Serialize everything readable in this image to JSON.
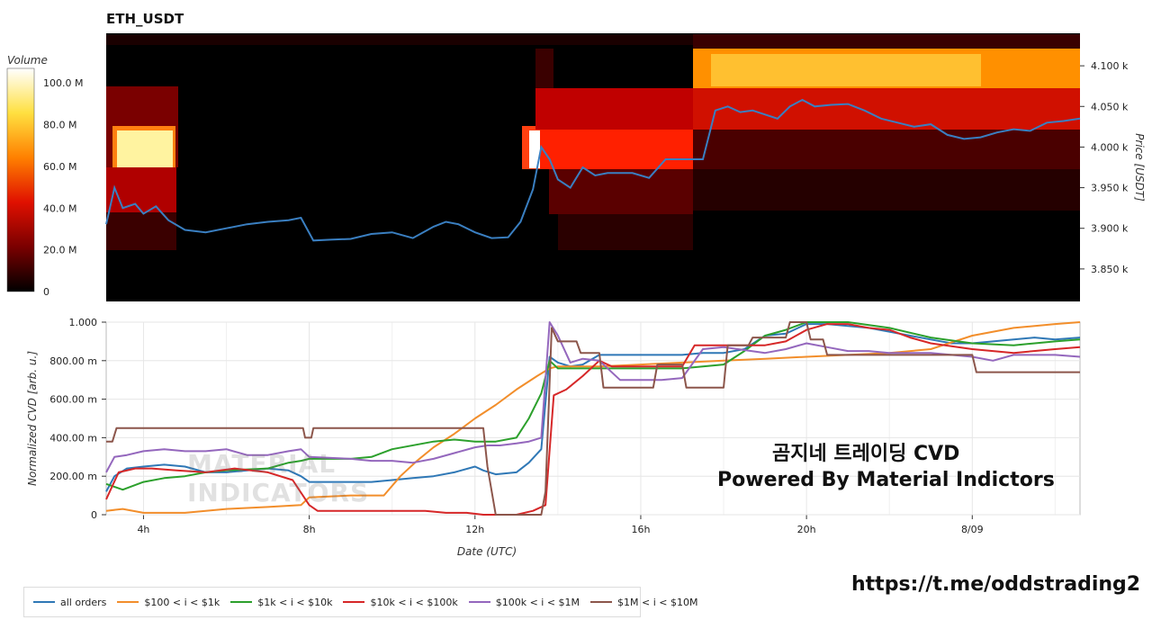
{
  "chart_data": [
    {
      "type": "heatmap",
      "title": "ETH_USDT",
      "colorbar": {
        "label": "Volume",
        "ticks": [
          "100.0 M",
          "80.0 M",
          "60.0 M",
          "40.0 M",
          "20.0 M",
          "0"
        ],
        "tick_values": [
          100,
          80,
          60,
          40,
          20,
          0
        ],
        "range": [
          0,
          107
        ],
        "colors": [
          "#000000",
          "#7a0000",
          "#e01000",
          "#ff8000",
          "#ffe040",
          "#ffffff"
        ]
      },
      "ylabel": "Price [USDT]",
      "y_ticks": [
        "4.100 k",
        "4.050 k",
        "4.000 k",
        "3.950 k",
        "3.900 k",
        "3.850 k"
      ],
      "y_tick_values": [
        4100,
        4050,
        4000,
        3950,
        3900,
        3850
      ],
      "ylim": [
        3810,
        4140
      ],
      "xlim": [
        3.1,
        26.6
      ],
      "price_line": {
        "color": "#3a7fc1",
        "x": [
          3.1,
          3.3,
          3.5,
          3.8,
          4.0,
          4.3,
          4.6,
          5.0,
          5.5,
          6.0,
          6.5,
          7.0,
          7.5,
          7.8,
          8.1,
          8.5,
          9.0,
          9.5,
          10.0,
          10.5,
          11.0,
          11.3,
          11.6,
          12.0,
          12.4,
          12.8,
          13.1,
          13.4,
          13.6,
          13.8,
          14.0,
          14.3,
          14.6,
          14.9,
          15.2,
          15.5,
          15.8,
          16.2,
          16.6,
          17.0,
          17.3,
          17.5,
          17.8,
          18.1,
          18.4,
          18.7,
          19.0,
          19.3,
          19.6,
          19.9,
          20.2,
          20.6,
          21.0,
          21.4,
          21.8,
          22.2,
          22.6,
          23.0,
          23.4,
          23.8,
          24.2,
          24.6,
          25.0,
          25.4,
          25.8,
          26.2,
          26.6
        ],
        "y": [
          3905,
          3950,
          3925,
          3930,
          3918,
          3927,
          3910,
          3898,
          3895,
          3900,
          3905,
          3908,
          3910,
          3913,
          3885,
          3886,
          3887,
          3893,
          3895,
          3888,
          3902,
          3908,
          3905,
          3895,
          3888,
          3889,
          3908,
          3948,
          4000,
          3985,
          3960,
          3950,
          3975,
          3965,
          3968,
          3968,
          3968,
          3962,
          3985,
          3985,
          3985,
          3985,
          4045,
          4050,
          4043,
          4045,
          4040,
          4035,
          4050,
          4058,
          4050,
          4052,
          4053,
          4045,
          4035,
          4030,
          4025,
          4028,
          4015,
          4010,
          4012,
          4018,
          4022,
          4020,
          4030,
          4032,
          4035
        ]
      }
    },
    {
      "type": "line",
      "xlabel": "Date (UTC)",
      "ylabel": "Normalized CVD [arb. u.]",
      "x_ticks": [
        "4h",
        "8h",
        "12h",
        "16h",
        "20h",
        "8/09"
      ],
      "x_tick_values": [
        4,
        8,
        12,
        16,
        20,
        24
      ],
      "xlim": [
        3.1,
        26.6
      ],
      "y_ticks": [
        "1.000",
        "800.00 m",
        "600.00 m",
        "400.00 m",
        "200.00 m",
        "0"
      ],
      "y_tick_values": [
        1.0,
        0.8,
        0.6,
        0.4,
        0.2,
        0.0
      ],
      "ylim": [
        0,
        1.0
      ],
      "grid": true,
      "series": [
        {
          "name": "all orders",
          "color": "#2f78b6",
          "x": [
            3.1,
            3.3,
            3.6,
            4.0,
            4.5,
            5.0,
            5.5,
            6.0,
            6.5,
            7.0,
            7.5,
            7.8,
            8.0,
            8.5,
            9.0,
            9.5,
            10.0,
            10.5,
            11.0,
            11.5,
            12.0,
            12.2,
            12.5,
            13.0,
            13.3,
            13.6,
            13.8,
            14.0,
            14.3,
            14.6,
            15.0,
            15.5,
            16.0,
            16.5,
            17.0,
            17.5,
            18.0,
            18.5,
            19.0,
            19.5,
            20.0,
            20.5,
            21.0,
            21.5,
            22.0,
            22.5,
            23.0,
            23.5,
            24.0,
            24.5,
            25.0,
            25.5,
            26.0,
            26.6
          ],
          "y": [
            0.12,
            0.2,
            0.24,
            0.25,
            0.26,
            0.25,
            0.22,
            0.22,
            0.23,
            0.24,
            0.23,
            0.2,
            0.17,
            0.17,
            0.17,
            0.17,
            0.18,
            0.19,
            0.2,
            0.22,
            0.25,
            0.23,
            0.21,
            0.22,
            0.27,
            0.34,
            0.82,
            0.79,
            0.77,
            0.78,
            0.83,
            0.83,
            0.83,
            0.83,
            0.83,
            0.84,
            0.84,
            0.86,
            0.93,
            0.94,
            0.99,
            0.99,
            0.98,
            0.97,
            0.95,
            0.93,
            0.91,
            0.89,
            0.89,
            0.9,
            0.91,
            0.92,
            0.91,
            0.92
          ]
        },
        {
          "name": "$100 < i < $1k",
          "color": "#f28e2b",
          "x": [
            3.1,
            3.5,
            4.0,
            5.0,
            6.0,
            7.0,
            7.8,
            8.0,
            9.0,
            9.8,
            10.2,
            10.6,
            11.0,
            11.5,
            12.0,
            12.5,
            13.0,
            13.5,
            13.8,
            14.0,
            15.0,
            16.0,
            17.0,
            18.0,
            19.0,
            20.0,
            21.0,
            22.0,
            23.0,
            24.0,
            25.0,
            26.0,
            26.6
          ],
          "y": [
            0.02,
            0.03,
            0.01,
            0.01,
            0.03,
            0.04,
            0.05,
            0.09,
            0.1,
            0.1,
            0.2,
            0.28,
            0.35,
            0.42,
            0.5,
            0.57,
            0.65,
            0.72,
            0.76,
            0.77,
            0.77,
            0.78,
            0.79,
            0.8,
            0.81,
            0.82,
            0.83,
            0.84,
            0.86,
            0.93,
            0.97,
            0.99,
            1.0
          ]
        },
        {
          "name": "$1k < i < $10k",
          "color": "#2ca02c",
          "x": [
            3.1,
            3.5,
            4.0,
            4.5,
            5.0,
            5.5,
            6.0,
            7.0,
            7.5,
            7.8,
            8.0,
            9.0,
            9.5,
            10.0,
            11.0,
            11.5,
            12.0,
            12.5,
            13.0,
            13.3,
            13.6,
            13.8,
            14.0,
            14.5,
            15.0,
            16.0,
            17.0,
            18.0,
            18.5,
            19.0,
            19.5,
            20.0,
            21.0,
            22.0,
            23.0,
            24.0,
            25.0,
            26.0,
            26.6
          ],
          "y": [
            0.16,
            0.13,
            0.17,
            0.19,
            0.2,
            0.22,
            0.23,
            0.24,
            0.27,
            0.28,
            0.29,
            0.29,
            0.3,
            0.34,
            0.38,
            0.39,
            0.38,
            0.38,
            0.4,
            0.5,
            0.63,
            0.8,
            0.76,
            0.76,
            0.76,
            0.76,
            0.76,
            0.78,
            0.85,
            0.93,
            0.96,
            1.0,
            1.0,
            0.97,
            0.92,
            0.89,
            0.88,
            0.9,
            0.91
          ]
        },
        {
          "name": "$10k < i < $100k",
          "color": "#d62728",
          "x": [
            3.1,
            3.4,
            3.8,
            4.2,
            4.8,
            5.5,
            6.2,
            7.0,
            7.6,
            8.0,
            8.2,
            8.6,
            9.0,
            10.0,
            10.8,
            11.3,
            11.8,
            12.2,
            12.6,
            13.0,
            13.4,
            13.7,
            13.9,
            14.2,
            14.6,
            15.0,
            15.3,
            15.8,
            16.5,
            17.0,
            17.3,
            18.0,
            19.0,
            19.5,
            20.0,
            20.5,
            21.0,
            21.5,
            22.0,
            22.5,
            23.0,
            24.0,
            25.0,
            26.0,
            26.6
          ],
          "y": [
            0.08,
            0.22,
            0.24,
            0.24,
            0.23,
            0.22,
            0.24,
            0.22,
            0.18,
            0.05,
            0.02,
            0.02,
            0.02,
            0.02,
            0.02,
            0.01,
            0.01,
            0.0,
            0.0,
            0.0,
            0.02,
            0.05,
            0.62,
            0.65,
            0.72,
            0.8,
            0.77,
            0.77,
            0.77,
            0.77,
            0.88,
            0.88,
            0.88,
            0.9,
            0.96,
            0.99,
            0.99,
            0.97,
            0.96,
            0.92,
            0.89,
            0.86,
            0.84,
            0.86,
            0.87
          ]
        },
        {
          "name": "$100k < i < $1M",
          "color": "#9467bd",
          "x": [
            3.1,
            3.3,
            3.6,
            4.0,
            4.5,
            5.0,
            5.5,
            6.0,
            6.5,
            7.0,
            7.5,
            7.8,
            8.0,
            9.0,
            9.5,
            10.0,
            10.5,
            11.0,
            11.5,
            12.0,
            12.3,
            12.6,
            13.0,
            13.3,
            13.6,
            13.8,
            14.0,
            14.3,
            14.6,
            15.0,
            15.5,
            16.0,
            16.5,
            17.0,
            17.5,
            18.0,
            19.0,
            19.5,
            20.0,
            20.5,
            21.0,
            21.5,
            22.0,
            23.0,
            24.0,
            24.5,
            25.0,
            26.0,
            26.6
          ],
          "y": [
            0.22,
            0.3,
            0.31,
            0.33,
            0.34,
            0.33,
            0.33,
            0.34,
            0.31,
            0.31,
            0.33,
            0.34,
            0.3,
            0.29,
            0.28,
            0.28,
            0.27,
            0.29,
            0.32,
            0.35,
            0.36,
            0.36,
            0.37,
            0.38,
            0.4,
            1.0,
            0.93,
            0.79,
            0.81,
            0.8,
            0.7,
            0.7,
            0.7,
            0.71,
            0.86,
            0.87,
            0.84,
            0.86,
            0.89,
            0.87,
            0.85,
            0.85,
            0.84,
            0.84,
            0.82,
            0.8,
            0.83,
            0.83,
            0.82
          ]
        },
        {
          "name": "$1M < i < $10M",
          "color": "#8c564b",
          "x": [
            3.1,
            3.25,
            3.35,
            7.85,
            7.9,
            8.05,
            8.1,
            12.2,
            12.3,
            12.5,
            13.6,
            13.7,
            13.85,
            14.0,
            14.45,
            14.55,
            15.0,
            15.1,
            16.3,
            16.4,
            17.0,
            17.1,
            18.0,
            18.1,
            18.6,
            18.7,
            19.5,
            19.6,
            20.0,
            20.1,
            20.4,
            20.5,
            24.0,
            24.1,
            26.6
          ],
          "y": [
            0.38,
            0.38,
            0.45,
            0.45,
            0.4,
            0.4,
            0.45,
            0.45,
            0.25,
            0.0,
            0.0,
            0.12,
            0.97,
            0.9,
            0.9,
            0.84,
            0.84,
            0.66,
            0.66,
            0.78,
            0.78,
            0.66,
            0.66,
            0.88,
            0.88,
            0.92,
            0.92,
            1.0,
            1.0,
            0.91,
            0.91,
            0.83,
            0.83,
            0.74,
            0.74
          ]
        }
      ]
    }
  ],
  "overlay": {
    "line1": "곰지네 트레이딩 CVD",
    "line2": "Powered By Material Indictors",
    "url": "https://t.me/oddstrading2"
  },
  "watermark": {
    "line1": "MATERIAL",
    "line2": "INDICATORS"
  }
}
